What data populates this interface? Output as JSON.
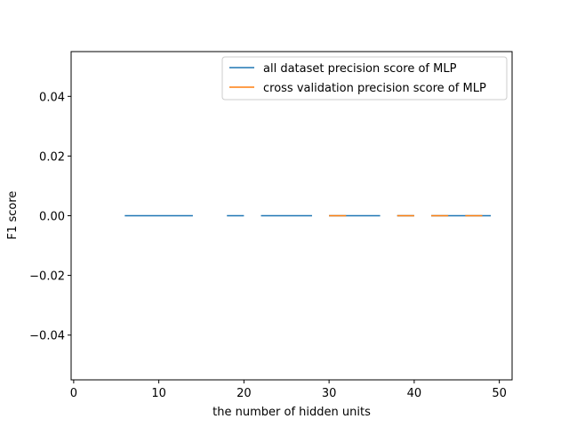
{
  "chart_data": {
    "type": "line",
    "title": "",
    "xlabel": "the number of hidden units",
    "ylabel": "F1 score",
    "xlim": [
      -0.3,
      51.5
    ],
    "ylim": [
      -0.055,
      0.055
    ],
    "xticks": [
      0,
      10,
      20,
      30,
      40,
      50
    ],
    "xtick_labels": [
      "0",
      "10",
      "20",
      "30",
      "40",
      "50"
    ],
    "yticks": [
      -0.04,
      -0.02,
      0.0,
      0.02,
      0.04
    ],
    "ytick_labels": [
      "−0.04",
      "−0.02",
      "0.00",
      "0.02",
      "0.04"
    ],
    "grid": false,
    "legend_position": "top-right",
    "series": [
      {
        "name": "all dataset precision score of MLP",
        "color": "#1f77b4",
        "segments": [
          [
            6,
            14
          ],
          [
            18,
            20
          ],
          [
            22,
            28
          ],
          [
            30,
            36
          ],
          [
            38,
            40
          ],
          [
            42,
            49
          ]
        ],
        "y": 0.0
      },
      {
        "name": "cross validation precision score of MLP",
        "color": "#ff7f0e",
        "segments": [
          [
            30,
            32
          ],
          [
            38,
            40
          ],
          [
            42,
            44
          ],
          [
            46,
            48
          ]
        ],
        "y": 0.0
      }
    ]
  }
}
